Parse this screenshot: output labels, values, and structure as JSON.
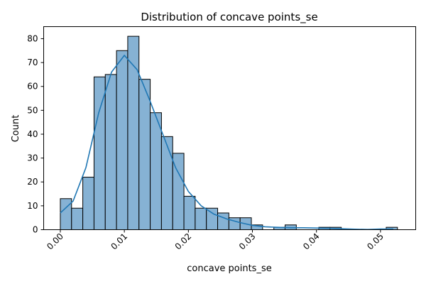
{
  "chart_data": {
    "type": "bar",
    "title": "Distribution of concave points_se",
    "xlabel": "concave points_se",
    "ylabel": "Count",
    "xlim": [
      -0.0026,
      0.0555
    ],
    "ylim": [
      0,
      85.05
    ],
    "xticks": [
      0.0,
      0.01,
      0.02,
      0.03,
      0.04,
      0.05
    ],
    "xtick_labels": [
      "0.00",
      "0.01",
      "0.02",
      "0.03",
      "0.04",
      "0.05"
    ],
    "yticks": [
      0,
      10,
      20,
      30,
      40,
      50,
      60,
      70,
      80
    ],
    "ytick_labels": [
      "0",
      "10",
      "20",
      "30",
      "40",
      "50",
      "60",
      "70",
      "80"
    ],
    "bin_start": 0.0,
    "bin_width": 0.001755,
    "counts": [
      13,
      9,
      22,
      64,
      65,
      75,
      81,
      63,
      49,
      39,
      32,
      14,
      9,
      9,
      7,
      5,
      5,
      2,
      0,
      1,
      2,
      0,
      0,
      1,
      1,
      0,
      0,
      0,
      0,
      1
    ],
    "kde": {
      "name": "",
      "x": [
        0.0,
        0.002,
        0.004,
        0.006,
        0.008,
        0.01,
        0.012,
        0.014,
        0.016,
        0.018,
        0.02,
        0.022,
        0.024,
        0.026,
        0.028,
        0.03,
        0.032,
        0.034,
        0.036,
        0.038,
        0.04,
        0.042,
        0.044,
        0.046,
        0.048,
        0.05,
        0.052
      ],
      "y": [
        7,
        12,
        26,
        49,
        66,
        73,
        67,
        54,
        40,
        26,
        16,
        10,
        6.5,
        4.5,
        3.0,
        1.8,
        1.2,
        1.0,
        0.8,
        0.8,
        0.7,
        0.6,
        0.4,
        0.2,
        0.1,
        0.3,
        0.3
      ]
    }
  }
}
